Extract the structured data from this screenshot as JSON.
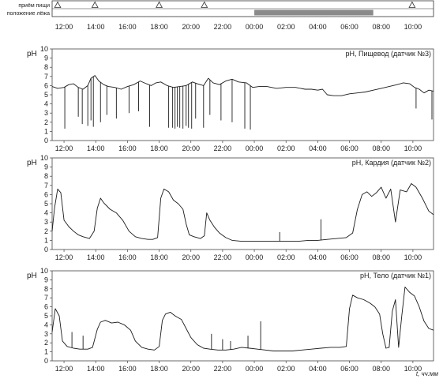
{
  "chart_data": {
    "type": "line",
    "event_track": {
      "rows": [
        "приём пищи",
        "положение лёжа"
      ],
      "meal_times": [
        11.6,
        13.95,
        18.0,
        20.85,
        33.95
      ],
      "lying_interval": [
        24.0,
        31.5
      ],
      "bar_color": "#8a8a8a"
    },
    "x_ticks": [
      "12:00",
      "14:00",
      "16:00",
      "18:00",
      "20:00",
      "22:00",
      "00:00",
      "02:00",
      "04:00",
      "06:00",
      "08:00",
      "10:00"
    ],
    "x_unit_label": "t, чч:мм",
    "x_range": [
      11.25,
      35.3
    ],
    "panels": [
      {
        "title": "pH, Пищевод (датчик №3)",
        "ylabel": "pH",
        "ylim": [
          0,
          10
        ],
        "y_ticks": [
          "0",
          "1",
          "2",
          "3",
          "4",
          "5",
          "6",
          "7",
          "8",
          "9",
          "10"
        ],
        "series": [
          {
            "points": [
              [
                11.25,
                5.9
              ],
              [
                11.6,
                5.7
              ],
              [
                12.0,
                5.8
              ],
              [
                12.3,
                6.1
              ],
              [
                12.6,
                6.2
              ],
              [
                12.9,
                5.8
              ],
              [
                13.2,
                5.6
              ],
              [
                13.5,
                6.0
              ],
              [
                13.7,
                6.8
              ],
              [
                13.95,
                7.1
              ],
              [
                14.2,
                6.5
              ],
              [
                14.5,
                6.1
              ],
              [
                14.8,
                5.9
              ],
              [
                15.2,
                5.8
              ],
              [
                15.6,
                5.6
              ],
              [
                16.0,
                5.9
              ],
              [
                16.4,
                6.1
              ],
              [
                16.8,
                6.5
              ],
              [
                17.2,
                6.2
              ],
              [
                17.5,
                6.0
              ],
              [
                17.8,
                6.3
              ],
              [
                18.1,
                6.4
              ],
              [
                18.5,
                6.0
              ],
              [
                18.9,
                5.8
              ],
              [
                19.3,
                5.9
              ],
              [
                19.7,
                6.0
              ],
              [
                20.1,
                6.4
              ],
              [
                20.4,
                6.2
              ],
              [
                20.8,
                6.0
              ],
              [
                21.1,
                6.8
              ],
              [
                21.4,
                6.3
              ],
              [
                21.8,
                6.1
              ],
              [
                22.2,
                6.5
              ],
              [
                22.6,
                6.7
              ],
              [
                23.0,
                6.4
              ],
              [
                23.5,
                6.3
              ],
              [
                23.9,
                5.8
              ],
              [
                24.3,
                5.9
              ],
              [
                24.8,
                5.9
              ],
              [
                25.4,
                5.7
              ],
              [
                26.0,
                5.8
              ],
              [
                26.6,
                5.8
              ],
              [
                27.2,
                5.6
              ],
              [
                27.6,
                5.6
              ],
              [
                28.0,
                5.5
              ],
              [
                28.3,
                5.6
              ],
              [
                28.6,
                5.0
              ],
              [
                29.0,
                4.9
              ],
              [
                29.5,
                4.9
              ],
              [
                30.0,
                5.1
              ],
              [
                30.5,
                5.2
              ],
              [
                31.0,
                5.3
              ],
              [
                31.5,
                5.5
              ],
              [
                32.0,
                5.7
              ],
              [
                32.5,
                5.9
              ],
              [
                33.0,
                6.1
              ],
              [
                33.4,
                6.3
              ],
              [
                33.8,
                6.2
              ],
              [
                34.1,
                5.8
              ],
              [
                34.4,
                5.6
              ],
              [
                34.7,
                5.2
              ],
              [
                35.0,
                5.5
              ],
              [
                35.3,
                5.4
              ]
            ],
            "dips": [
              [
                12.05,
                1.3
              ],
              [
                12.9,
                2.6
              ],
              [
                13.15,
                1.8
              ],
              [
                13.5,
                1.6
              ],
              [
                13.7,
                2.2
              ],
              [
                13.85,
                1.5
              ],
              [
                14.3,
                2.0
              ],
              [
                14.7,
                2.8
              ],
              [
                15.3,
                2.4
              ],
              [
                16.1,
                3.0
              ],
              [
                16.7,
                3.2
              ],
              [
                17.4,
                1.5
              ],
              [
                18.6,
                1.4
              ],
              [
                18.85,
                1.4
              ],
              [
                19.0,
                1.3
              ],
              [
                19.15,
                1.5
              ],
              [
                19.3,
                1.4
              ],
              [
                19.5,
                1.3
              ],
              [
                19.7,
                1.6
              ],
              [
                19.85,
                1.4
              ],
              [
                20.05,
                1.3
              ],
              [
                20.3,
                2.4
              ],
              [
                20.8,
                1.4
              ],
              [
                21.2,
                2.8
              ],
              [
                21.9,
                2.2
              ],
              [
                22.6,
                2.0
              ],
              [
                23.4,
                1.3
              ],
              [
                23.75,
                1.2
              ],
              [
                34.2,
                3.5
              ],
              [
                35.2,
                2.3
              ]
            ]
          }
        ]
      },
      {
        "title": "pH, Кардия (датчик №2)",
        "ylabel": "pH",
        "ylim": [
          0,
          10
        ],
        "y_ticks": [
          "0",
          "1",
          "2",
          "3",
          "4",
          "5",
          "6",
          "7",
          "8",
          "9",
          "10"
        ],
        "series": [
          {
            "points": [
              [
                11.25,
                2.0
              ],
              [
                11.4,
                4.5
              ],
              [
                11.6,
                6.6
              ],
              [
                11.8,
                6.2
              ],
              [
                12.0,
                3.2
              ],
              [
                12.3,
                2.5
              ],
              [
                12.6,
                2.0
              ],
              [
                12.9,
                1.6
              ],
              [
                13.2,
                1.4
              ],
              [
                13.6,
                1.2
              ],
              [
                13.9,
                2.0
              ],
              [
                14.1,
                4.5
              ],
              [
                14.3,
                5.6
              ],
              [
                14.5,
                5.1
              ],
              [
                14.9,
                4.4
              ],
              [
                15.3,
                4.0
              ],
              [
                15.7,
                3.2
              ],
              [
                16.1,
                2.0
              ],
              [
                16.5,
                1.4
              ],
              [
                16.9,
                1.2
              ],
              [
                17.3,
                1.1
              ],
              [
                17.6,
                1.1
              ],
              [
                17.9,
                1.3
              ],
              [
                18.1,
                5.6
              ],
              [
                18.3,
                6.6
              ],
              [
                18.6,
                6.3
              ],
              [
                18.9,
                5.4
              ],
              [
                19.2,
                5.0
              ],
              [
                19.5,
                4.4
              ],
              [
                19.7,
                2.8
              ],
              [
                19.9,
                1.6
              ],
              [
                20.2,
                1.4
              ],
              [
                20.6,
                1.2
              ],
              [
                20.85,
                1.5
              ],
              [
                21.0,
                4.0
              ],
              [
                21.2,
                3.2
              ],
              [
                21.5,
                2.4
              ],
              [
                21.8,
                1.8
              ],
              [
                22.2,
                1.3
              ],
              [
                22.6,
                1.0
              ],
              [
                23.2,
                0.9
              ],
              [
                23.8,
                0.9
              ],
              [
                24.4,
                0.9
              ],
              [
                25.0,
                0.9
              ],
              [
                25.6,
                0.9
              ],
              [
                26.2,
                0.9
              ],
              [
                26.8,
                0.9
              ],
              [
                27.4,
                1.0
              ],
              [
                28.0,
                1.0
              ],
              [
                28.6,
                1.1
              ],
              [
                29.2,
                1.2
              ],
              [
                29.8,
                1.3
              ],
              [
                30.2,
                1.8
              ],
              [
                30.5,
                4.4
              ],
              [
                30.8,
                6.0
              ],
              [
                31.1,
                6.3
              ],
              [
                31.4,
                5.8
              ],
              [
                31.7,
                6.2
              ],
              [
                32.0,
                6.8
              ],
              [
                32.3,
                5.6
              ],
              [
                32.6,
                6.6
              ],
              [
                32.9,
                3.0
              ],
              [
                33.2,
                6.5
              ],
              [
                33.6,
                6.3
              ],
              [
                33.9,
                7.2
              ],
              [
                34.2,
                6.8
              ],
              [
                34.6,
                5.6
              ],
              [
                35.0,
                4.2
              ],
              [
                35.3,
                3.8
              ]
            ],
            "dips": [
              [
                25.6,
                1.9
              ],
              [
                28.2,
                3.3
              ]
            ]
          }
        ]
      },
      {
        "title": "pH, Тело (датчик №1)",
        "ylabel": "pH",
        "ylim": [
          0,
          10
        ],
        "y_ticks": [
          "0",
          "1",
          "2",
          "3",
          "4",
          "5",
          "6",
          "7",
          "8",
          "9",
          "10"
        ],
        "series": [
          {
            "points": [
              [
                11.25,
                3.2
              ],
              [
                11.45,
                5.8
              ],
              [
                11.7,
                5.0
              ],
              [
                11.9,
                2.2
              ],
              [
                12.2,
                1.6
              ],
              [
                12.6,
                1.4
              ],
              [
                13.0,
                1.3
              ],
              [
                13.5,
                1.3
              ],
              [
                13.8,
                1.5
              ],
              [
                14.1,
                3.5
              ],
              [
                14.3,
                4.3
              ],
              [
                14.6,
                4.5
              ],
              [
                15.0,
                4.2
              ],
              [
                15.4,
                4.3
              ],
              [
                15.8,
                4.0
              ],
              [
                16.2,
                3.4
              ],
              [
                16.5,
                2.2
              ],
              [
                16.9,
                1.5
              ],
              [
                17.3,
                1.3
              ],
              [
                17.7,
                1.2
              ],
              [
                18.0,
                1.6
              ],
              [
                18.2,
                4.5
              ],
              [
                18.4,
                5.2
              ],
              [
                18.7,
                5.4
              ],
              [
                19.0,
                5.0
              ],
              [
                19.4,
                4.6
              ],
              [
                19.7,
                3.6
              ],
              [
                20.0,
                2.6
              ],
              [
                20.4,
                1.8
              ],
              [
                20.8,
                1.4
              ],
              [
                21.2,
                1.3
              ],
              [
                21.7,
                1.2
              ],
              [
                22.2,
                1.2
              ],
              [
                22.7,
                1.3
              ],
              [
                23.2,
                1.5
              ],
              [
                23.7,
                1.4
              ],
              [
                24.2,
                1.3
              ],
              [
                24.7,
                1.2
              ],
              [
                25.2,
                1.1
              ],
              [
                25.8,
                1.1
              ],
              [
                26.4,
                1.1
              ],
              [
                27.0,
                1.2
              ],
              [
                27.6,
                1.3
              ],
              [
                28.2,
                1.4
              ],
              [
                28.8,
                1.5
              ],
              [
                29.4,
                1.5
              ],
              [
                29.8,
                1.6
              ],
              [
                30.0,
                5.8
              ],
              [
                30.2,
                7.3
              ],
              [
                30.5,
                7.0
              ],
              [
                30.9,
                6.8
              ],
              [
                31.3,
                6.4
              ],
              [
                31.6,
                6.0
              ],
              [
                31.9,
                5.2
              ],
              [
                32.1,
                3.0
              ],
              [
                32.3,
                1.4
              ],
              [
                32.5,
                1.5
              ],
              [
                32.7,
                5.5
              ],
              [
                32.9,
                6.8
              ],
              [
                33.1,
                1.5
              ],
              [
                33.3,
                5.0
              ],
              [
                33.5,
                8.2
              ],
              [
                33.8,
                7.6
              ],
              [
                34.1,
                7.2
              ],
              [
                34.4,
                6.0
              ],
              [
                34.7,
                4.4
              ],
              [
                35.0,
                3.6
              ],
              [
                35.3,
                3.4
              ]
            ],
            "dips": [
              [
                12.5,
                3.2
              ],
              [
                13.2,
                2.8
              ],
              [
                21.3,
                3.0
              ],
              [
                22.0,
                2.4
              ],
              [
                22.5,
                2.2
              ],
              [
                23.6,
                2.8
              ],
              [
                24.4,
                4.4
              ]
            ]
          }
        ]
      }
    ]
  }
}
